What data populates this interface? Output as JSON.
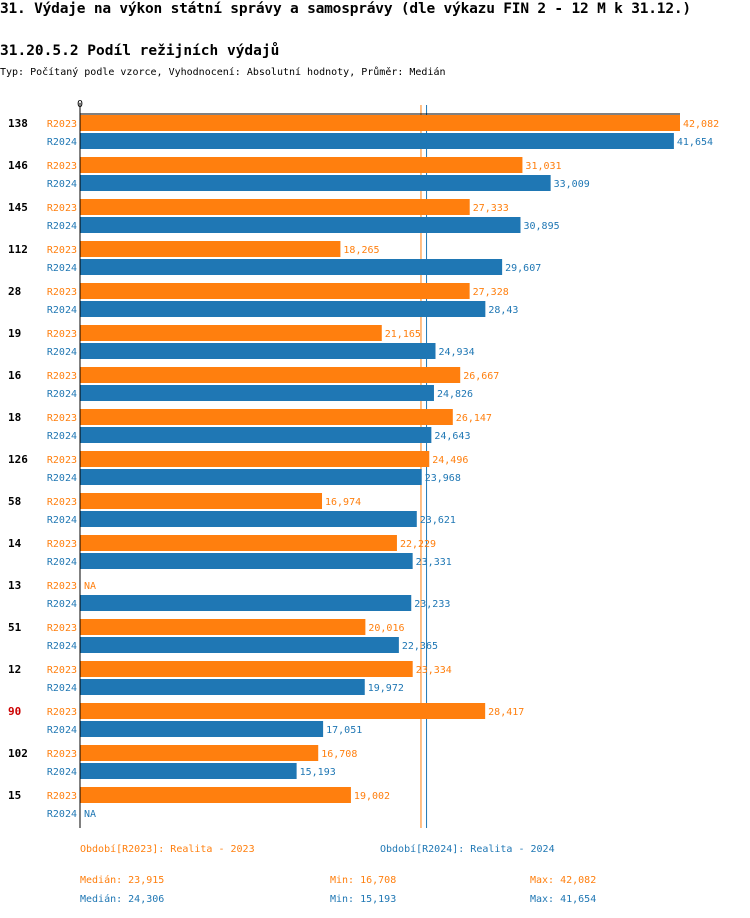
{
  "header": {
    "title": "31. Výdaje na výkon státní správy a samosprávy (dle výkazu FIN 2 - 12 M k 31.12.)",
    "subtitle": "31.20.5.2 Podíl režijních výdajů",
    "info": "Typ: Počítaný podle vzorce, Vyhodnocení: Absolutní hodnoty, Průměr: Medián"
  },
  "colors": {
    "r2023": "#ff7f0e",
    "r2024": "#1f77b4",
    "highlight": "#cc0000",
    "axis": "#000000"
  },
  "chart_data": {
    "type": "bar",
    "orientation": "horizontal",
    "axis_zero_label": "0",
    "xlim": [
      0,
      42.082
    ],
    "categories": [
      "138",
      "146",
      "145",
      "112",
      "28",
      "19",
      "16",
      "18",
      "126",
      "58",
      "14",
      "13",
      "51",
      "12",
      "90",
      "102",
      "15"
    ],
    "highlighted_category": "90",
    "series": [
      {
        "name": "R2023",
        "labels": [
          "42,082",
          "31,031",
          "27,333",
          "18,265",
          "27,328",
          "21,165",
          "26,667",
          "26,147",
          "24,496",
          "16,974",
          "22,229",
          "NA",
          "20,016",
          "23,334",
          "28,417",
          "16,708",
          "19,002"
        ],
        "values": [
          42.082,
          31.031,
          27.333,
          18.265,
          27.328,
          21.165,
          26.667,
          26.147,
          24.496,
          16.974,
          22.229,
          null,
          20.016,
          23.334,
          28.417,
          16.708,
          19.002
        ]
      },
      {
        "name": "R2024",
        "labels": [
          "41,654",
          "33,009",
          "30,895",
          "29,607",
          "28,43",
          "24,934",
          "24,826",
          "24,643",
          "23,968",
          "23,621",
          "23,331",
          "23,233",
          "22,365",
          "19,972",
          "17,051",
          "15,193",
          "NA"
        ],
        "values": [
          41.654,
          33.009,
          30.895,
          29.607,
          28.43,
          24.934,
          24.826,
          24.643,
          23.968,
          23.621,
          23.331,
          23.233,
          22.365,
          19.972,
          17.051,
          15.193,
          null
        ]
      }
    ],
    "medians": {
      "R2023": 23.915,
      "R2024": 24.306
    }
  },
  "footer": {
    "legend_2023": "Období[R2023]: Realita - 2023",
    "legend_2024": "Období[R2024]: Realita - 2024",
    "median_2023": "Medián: 23,915",
    "min_2023": "Min: 16,708",
    "max_2023": "Max: 42,082",
    "median_2024": "Medián: 24,306",
    "min_2024": "Min: 15,193",
    "max_2024": "Max: 41,654"
  }
}
